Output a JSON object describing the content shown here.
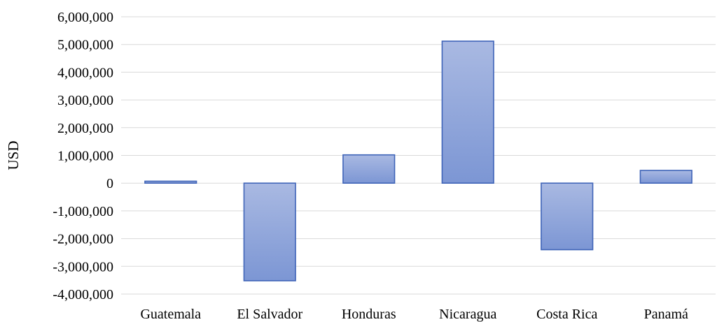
{
  "chart_data": {
    "type": "bar",
    "title": "",
    "xlabel": "",
    "ylabel": "USD",
    "categories": [
      "Guatemala",
      "El Salvador",
      "Honduras",
      "Nicaragua",
      "Costa Rica",
      "Panamá"
    ],
    "values": [
      70000,
      -3520000,
      1020000,
      5120000,
      -2400000,
      460000
    ],
    "ylim": [
      -4000000,
      6000000
    ],
    "ytick_labels": [
      "6,000,000",
      "5,000,000",
      "4,000,000",
      "3,000,000",
      "2,000,000",
      "1,000,000",
      "0",
      "-1,000,000",
      "-2,000,000",
      "-3,000,000",
      "-4,000,000"
    ],
    "ytick_values": [
      6000000,
      5000000,
      4000000,
      3000000,
      2000000,
      1000000,
      0,
      -1000000,
      -2000000,
      -3000000,
      -4000000
    ],
    "grid": true,
    "legend": "none",
    "colors": {
      "bar_fill_top": "#a9b9e2",
      "bar_fill_bottom": "#7c96d4",
      "bar_stroke": "#3f64b8",
      "grid": "#d9d9d9",
      "zero_line": "#d9d9d9"
    }
  }
}
